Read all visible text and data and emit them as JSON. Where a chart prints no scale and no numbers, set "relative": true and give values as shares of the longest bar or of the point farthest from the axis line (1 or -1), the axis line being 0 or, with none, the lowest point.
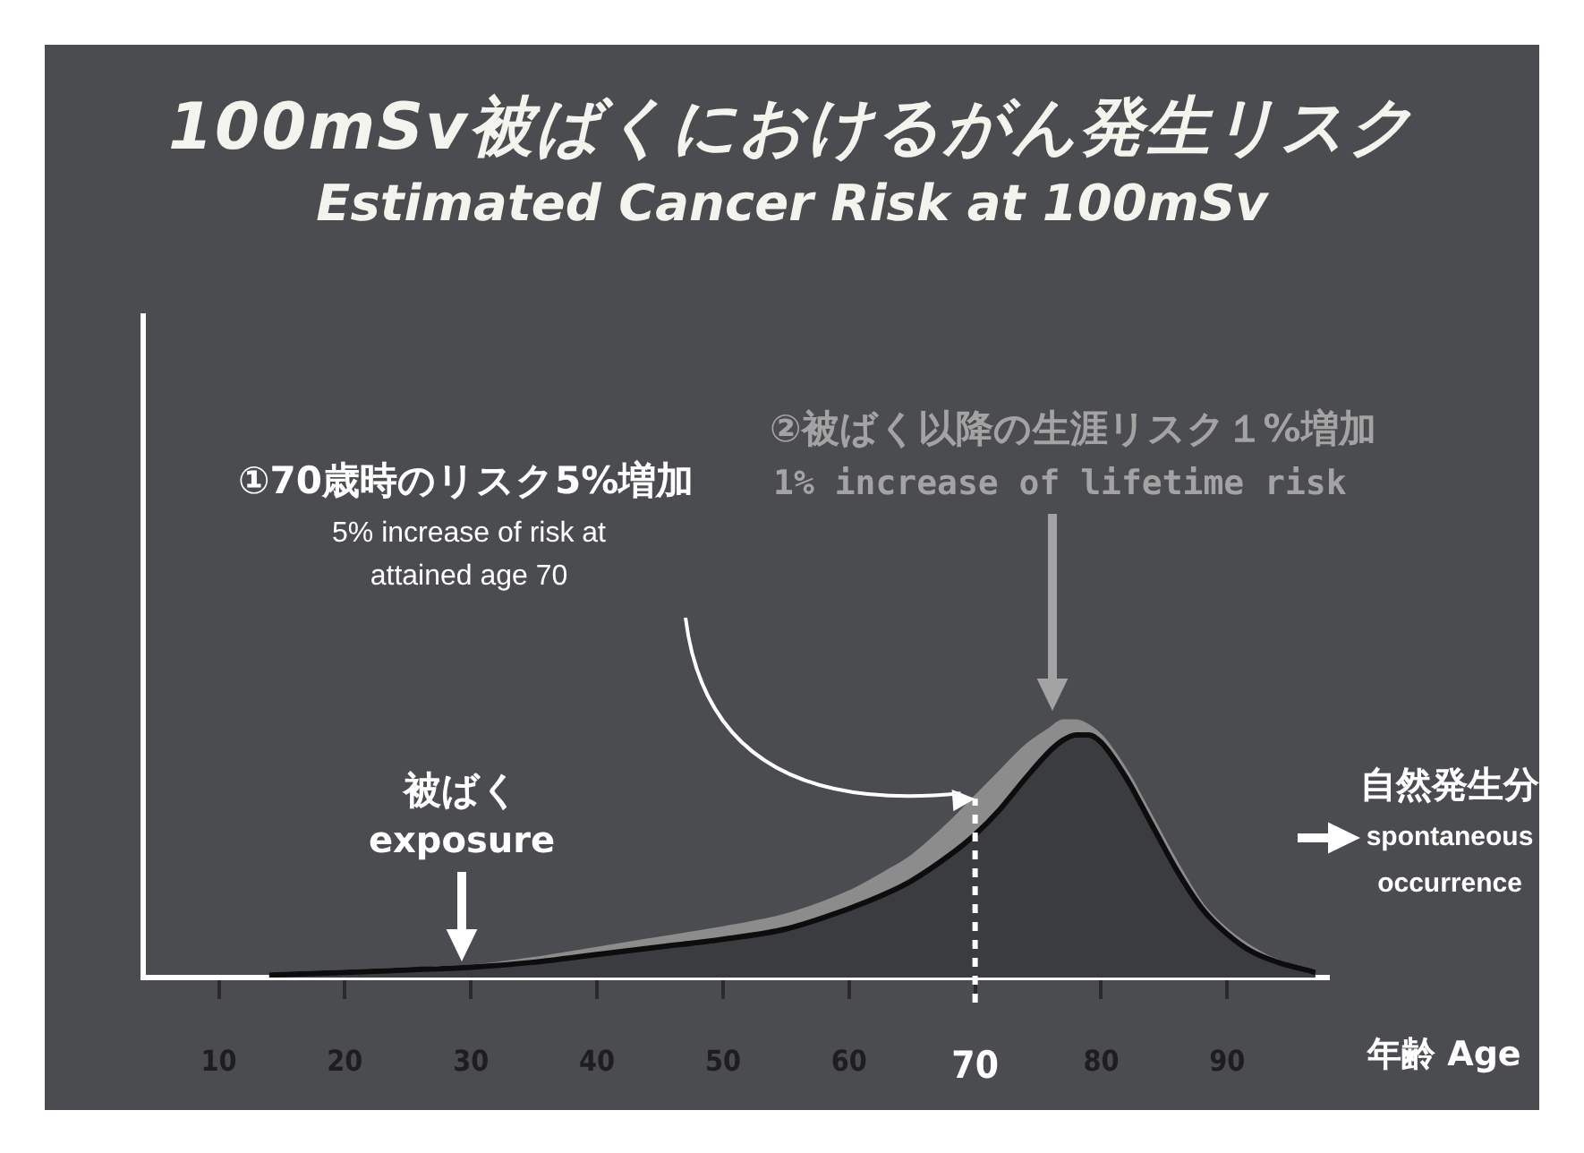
{
  "chart_data": {
    "type": "area",
    "title": "100mSv被ばくにおけるがん発生リスク",
    "subtitle": "Estimated Cancer Risk at 100mSv",
    "xlabel": "年齢 Age",
    "relative": true,
    "x": [
      14,
      20,
      25,
      30,
      35,
      40,
      45,
      50,
      55,
      60,
      63,
      65,
      68,
      70,
      72,
      74,
      76,
      77,
      78,
      79,
      80,
      82,
      84,
      86,
      88,
      90,
      92,
      94,
      97
    ],
    "series": [
      {
        "color": "#8c8c8c",
        "values": [
          0.01,
          0.02,
          0.03,
          0.04,
          0.07,
          0.11,
          0.15,
          0.19,
          0.24,
          0.33,
          0.41,
          0.47,
          0.6,
          0.7,
          0.8,
          0.9,
          0.97,
          1,
          1,
          0.98,
          0.94,
          0.8,
          0.62,
          0.44,
          0.28,
          0.18,
          0.11,
          0.06,
          0.02
        ]
      },
      {
        "color": "#3b3c3f",
        "values": [
          0.01,
          0.02,
          0.03,
          0.04,
          0.06,
          0.09,
          0.12,
          0.15,
          0.19,
          0.27,
          0.33,
          0.38,
          0.48,
          0.56,
          0.66,
          0.78,
          0.89,
          0.93,
          0.95,
          0.95,
          0.92,
          0.78,
          0.6,
          0.42,
          0.27,
          0.17,
          0.1,
          0.06,
          0.02
        ]
      }
    ],
    "xlim": [
      4,
      98
    ],
    "xticks": [
      10,
      20,
      30,
      40,
      50,
      60,
      70,
      80,
      90
    ],
    "ref_lines": [
      {
        "axis": "x",
        "value": 70,
        "label": null,
        "color": "#ffffff",
        "line_style": "dotted"
      }
    ],
    "annotations": [
      {
        "text": "①70歳時のリスク5%増加\n5% increase of risk at\nattained age 70",
        "x": 70,
        "y": 0.7
      },
      "②被ばく以降の生涯リスク１%増加\n1% increase of lifetime risk",
      "被ばく\nexposure",
      "自然発生分\nspontaneous\noccurrence"
    ],
    "grid": false,
    "legend": false,
    "marker": "none"
  }
}
